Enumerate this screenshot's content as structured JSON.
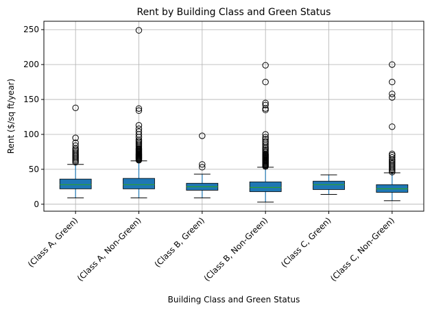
{
  "chart_data": {
    "type": "box",
    "title": "Rent by Building Class and Green Status",
    "xlabel": "Building Class and Green Status",
    "ylabel": "Rent ($/sq ft/year)",
    "ylim": [
      -10,
      262
    ],
    "yticks": [
      "0",
      "50",
      "100",
      "150",
      "200",
      "250"
    ],
    "ytick_values": [
      0,
      50,
      100,
      150,
      200,
      250
    ],
    "grid": true,
    "colors": {
      "box": "#1f77b4",
      "median": "#2ca02c",
      "whisker": "#1f77b4",
      "cap": "#000000",
      "grid": "#b0b0b0"
    },
    "categories": [
      "(Class A, Green)",
      "(Class A, Non-Green)",
      "(Class B, Green)",
      "(Class B, Non-Green)",
      "(Class C, Green)",
      "(Class C, Non-Green)"
    ],
    "boxes": [
      {
        "whislo": 9,
        "q1": 22,
        "med": 28,
        "q3": 36,
        "whishi": 57,
        "fliers": [
          60,
          62,
          64,
          66,
          68,
          70,
          72,
          74,
          76,
          78,
          80,
          84,
          88,
          95,
          138
        ]
      },
      {
        "whislo": 9,
        "q1": 22,
        "med": 28,
        "q3": 37,
        "whishi": 62,
        "fliers": [
          63,
          64,
          65,
          66,
          67,
          68,
          69,
          70,
          71,
          72,
          73,
          74,
          75,
          76,
          77,
          78,
          79,
          80,
          82,
          84,
          86,
          88,
          90,
          92,
          96,
          100,
          104,
          108,
          113,
          134,
          137,
          249
        ]
      },
      {
        "whislo": 9,
        "q1": 20,
        "med": 25,
        "q3": 30,
        "whishi": 43,
        "fliers": [
          53,
          57,
          98
        ]
      },
      {
        "whislo": 3,
        "q1": 18,
        "med": 24,
        "q3": 32,
        "whishi": 53,
        "fliers": [
          54,
          55,
          56,
          57,
          58,
          59,
          60,
          61,
          62,
          63,
          64,
          65,
          66,
          67,
          68,
          69,
          70,
          71,
          72,
          74,
          76,
          78,
          80,
          82,
          85,
          88,
          90,
          93,
          96,
          100,
          135,
          137,
          142,
          145,
          175,
          199
        ]
      },
      {
        "whislo": 14,
        "q1": 21,
        "med": 28,
        "q3": 33,
        "whishi": 42,
        "fliers": []
      },
      {
        "whislo": 5,
        "q1": 17,
        "med": 22,
        "q3": 28,
        "whishi": 45,
        "fliers": [
          46,
          48,
          50,
          52,
          54,
          56,
          58,
          60,
          62,
          64,
          67,
          70,
          72,
          111,
          153,
          158,
          175,
          200
        ]
      }
    ]
  }
}
